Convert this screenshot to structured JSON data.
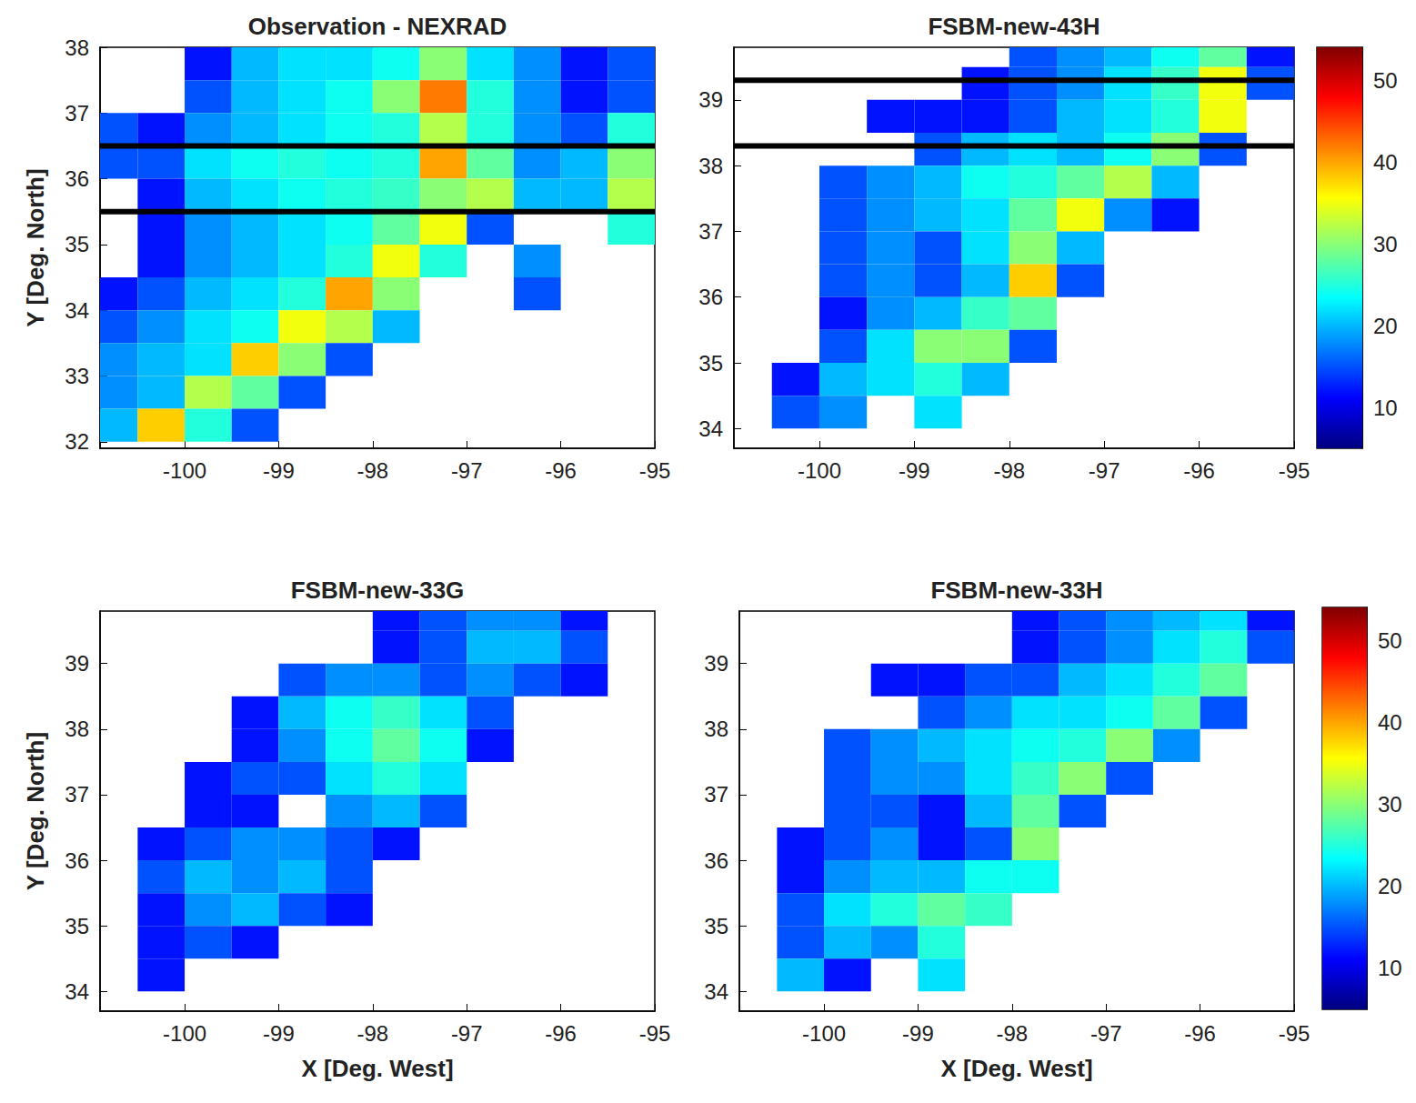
{
  "chart_data": [
    {
      "type": "heatmap",
      "title": "Observation - NEXRAD",
      "ylabel": "Y [Deg. North]",
      "xlim": [
        -100.9,
        -95
      ],
      "xticks": [
        -100,
        -99,
        -98,
        -97,
        -96,
        -95
      ],
      "ylim": [
        31.9,
        38
      ],
      "yticks": [
        32,
        33,
        34,
        35,
        36,
        37,
        38
      ],
      "hlines": [
        35.5,
        36.5
      ],
      "cells": {
        "x": [
          -100.75,
          -100.25,
          -99.75,
          -99.25,
          -98.75,
          -98.25,
          -97.75,
          -97.25,
          -96.75,
          -96.25,
          -95.75,
          -95.25
        ],
        "y": [
          37.75,
          37.25,
          36.75,
          36.25,
          35.75,
          35.25,
          34.75,
          34.25,
          33.75,
          33.25,
          32.75,
          32.25
        ],
        "values": [
          [
            null,
            null,
            12,
            20,
            22,
            22,
            24,
            30,
            22,
            18,
            12,
            15
          ],
          [
            null,
            null,
            15,
            20,
            22,
            24,
            30,
            42,
            25,
            18,
            12,
            15
          ],
          [
            15,
            12,
            18,
            20,
            22,
            24,
            25,
            32,
            25,
            18,
            15,
            25
          ],
          [
            15,
            15,
            22,
            24,
            25,
            24,
            25,
            40,
            28,
            18,
            20,
            30
          ],
          [
            null,
            12,
            20,
            22,
            24,
            25,
            26,
            30,
            32,
            20,
            20,
            32
          ],
          [
            null,
            12,
            18,
            20,
            22,
            24,
            28,
            35,
            15,
            null,
            null,
            25
          ],
          [
            null,
            12,
            18,
            20,
            22,
            25,
            35,
            25,
            null,
            18,
            null,
            null
          ],
          [
            12,
            15,
            20,
            22,
            25,
            40,
            30,
            null,
            null,
            15,
            null,
            null
          ],
          [
            15,
            18,
            22,
            24,
            35,
            32,
            20,
            null,
            null,
            null,
            null,
            null
          ],
          [
            18,
            20,
            22,
            38,
            30,
            15,
            null,
            null,
            null,
            null,
            null,
            null
          ],
          [
            18,
            20,
            32,
            28,
            15,
            null,
            null,
            null,
            null,
            null,
            null,
            null
          ],
          [
            20,
            38,
            25,
            15,
            null,
            null,
            null,
            null,
            null,
            null,
            null,
            null
          ]
        ]
      }
    },
    {
      "type": "heatmap",
      "title": "FSBM-new-43H",
      "xlim": [
        -100.9,
        -95
      ],
      "xticks": [
        -100,
        -99,
        -98,
        -97,
        -96,
        -95
      ],
      "ylim": [
        33.7,
        39.8
      ],
      "yticks": [
        34,
        35,
        36,
        37,
        38,
        39
      ],
      "hlines": [
        38.3,
        39.3
      ],
      "colorbar": {
        "range": [
          5,
          54
        ],
        "ticks": [
          10,
          20,
          30,
          40,
          50
        ]
      },
      "cells": {
        "x": [
          -100.75,
          -100.25,
          -99.75,
          -99.25,
          -98.75,
          -98.25,
          -97.75,
          -97.25,
          -96.75,
          -96.25,
          -95.75,
          -95.25
        ],
        "y": [
          39.75,
          39.25,
          38.75,
          38.25,
          37.75,
          37.25,
          36.75,
          36.25,
          35.75,
          35.25,
          34.75,
          34.25
        ],
        "values": [
          [
            null,
            null,
            null,
            null,
            null,
            null,
            15,
            18,
            20,
            24,
            28,
            12
          ],
          [
            null,
            null,
            null,
            null,
            null,
            12,
            15,
            18,
            22,
            26,
            35,
            15
          ],
          [
            null,
            null,
            null,
            12,
            12,
            12,
            15,
            20,
            22,
            25,
            35,
            null
          ],
          [
            null,
            null,
            null,
            null,
            15,
            20,
            22,
            20,
            24,
            30,
            15,
            null
          ],
          [
            null,
            null,
            15,
            18,
            20,
            24,
            25,
            28,
            32,
            20,
            null,
            null
          ],
          [
            null,
            null,
            15,
            18,
            20,
            22,
            28,
            35,
            18,
            12,
            null,
            null
          ],
          [
            null,
            null,
            15,
            18,
            15,
            22,
            30,
            20,
            null,
            null,
            null,
            null
          ],
          [
            null,
            null,
            15,
            18,
            15,
            20,
            38,
            15,
            null,
            null,
            null,
            null
          ],
          [
            null,
            null,
            12,
            18,
            20,
            26,
            28,
            null,
            null,
            null,
            null,
            null
          ],
          [
            null,
            null,
            15,
            22,
            30,
            30,
            15,
            null,
            null,
            null,
            null,
            null
          ],
          [
            null,
            12,
            20,
            22,
            25,
            20,
            null,
            null,
            null,
            null,
            null,
            null
          ],
          [
            null,
            15,
            18,
            null,
            22,
            null,
            null,
            null,
            null,
            null,
            null,
            null
          ]
        ]
      }
    },
    {
      "type": "heatmap",
      "title": "FSBM-new-33G",
      "xlabel": "X [Deg. West]",
      "ylabel": "Y [Deg. North]",
      "xlim": [
        -100.9,
        -95
      ],
      "xticks": [
        -100,
        -99,
        -98,
        -97,
        -96,
        -95
      ],
      "ylim": [
        33.7,
        39.8
      ],
      "yticks": [
        34,
        35,
        36,
        37,
        38,
        39
      ],
      "cells": {
        "x": [
          -100.75,
          -100.25,
          -99.75,
          -99.25,
          -98.75,
          -98.25,
          -97.75,
          -97.25,
          -96.75,
          -96.25,
          -95.75,
          -95.25
        ],
        "y": [
          39.75,
          39.25,
          38.75,
          38.25,
          37.75,
          37.25,
          36.75,
          36.25,
          35.75,
          35.25,
          34.75,
          34.25
        ],
        "values": [
          [
            null,
            null,
            null,
            null,
            null,
            null,
            12,
            15,
            18,
            18,
            12,
            null
          ],
          [
            null,
            null,
            null,
            null,
            null,
            null,
            12,
            15,
            20,
            20,
            15,
            null
          ],
          [
            null,
            null,
            null,
            null,
            15,
            18,
            18,
            15,
            18,
            15,
            12,
            null
          ],
          [
            null,
            null,
            null,
            12,
            20,
            24,
            26,
            22,
            15,
            null,
            null,
            null
          ],
          [
            null,
            null,
            null,
            12,
            18,
            24,
            28,
            24,
            12,
            null,
            null,
            null
          ],
          [
            null,
            null,
            12,
            15,
            15,
            22,
            25,
            22,
            null,
            null,
            null,
            null
          ],
          [
            null,
            null,
            12,
            12,
            null,
            18,
            20,
            15,
            null,
            null,
            null,
            null
          ],
          [
            null,
            12,
            15,
            18,
            18,
            15,
            12,
            null,
            null,
            null,
            null,
            null
          ],
          [
            null,
            15,
            20,
            18,
            20,
            15,
            null,
            null,
            null,
            null,
            null,
            null
          ],
          [
            null,
            12,
            18,
            20,
            15,
            12,
            null,
            null,
            null,
            null,
            null,
            null
          ],
          [
            null,
            12,
            15,
            12,
            null,
            null,
            null,
            null,
            null,
            null,
            null,
            null
          ],
          [
            null,
            12,
            null,
            null,
            null,
            null,
            null,
            null,
            null,
            null,
            null,
            null
          ]
        ]
      }
    },
    {
      "type": "heatmap",
      "title": "FSBM-new-33H",
      "xlabel": "X [Deg. West]",
      "xlim": [
        -100.9,
        -95
      ],
      "xticks": [
        -100,
        -99,
        -98,
        -97,
        -96,
        -95
      ],
      "ylim": [
        33.7,
        39.8
      ],
      "yticks": [
        34,
        35,
        36,
        37,
        38,
        39
      ],
      "colorbar": {
        "range": [
          5,
          54
        ],
        "ticks": [
          10,
          20,
          30,
          40,
          50
        ]
      },
      "cells": {
        "x": [
          -100.75,
          -100.25,
          -99.75,
          -99.25,
          -98.75,
          -98.25,
          -97.75,
          -97.25,
          -96.75,
          -96.25,
          -95.75,
          -95.25
        ],
        "y": [
          39.75,
          39.25,
          38.75,
          38.25,
          37.75,
          37.25,
          36.75,
          36.25,
          35.75,
          35.25,
          34.75,
          34.25
        ],
        "values": [
          [
            null,
            null,
            null,
            null,
            null,
            null,
            12,
            15,
            18,
            20,
            22,
            12
          ],
          [
            null,
            null,
            null,
            null,
            null,
            null,
            12,
            15,
            18,
            22,
            25,
            15
          ],
          [
            null,
            null,
            null,
            12,
            12,
            15,
            15,
            20,
            22,
            25,
            28,
            null
          ],
          [
            null,
            null,
            null,
            null,
            15,
            18,
            22,
            22,
            24,
            28,
            15,
            null
          ],
          [
            null,
            null,
            15,
            18,
            20,
            22,
            24,
            25,
            30,
            18,
            null,
            null
          ],
          [
            null,
            null,
            15,
            18,
            18,
            22,
            26,
            30,
            15,
            null,
            null,
            null
          ],
          [
            null,
            null,
            15,
            15,
            12,
            20,
            28,
            15,
            null,
            null,
            null,
            null
          ],
          [
            null,
            12,
            15,
            18,
            12,
            15,
            30,
            null,
            null,
            null,
            null,
            null
          ],
          [
            null,
            12,
            18,
            20,
            20,
            24,
            24,
            null,
            null,
            null,
            null,
            null
          ],
          [
            null,
            15,
            22,
            25,
            28,
            26,
            null,
            null,
            null,
            null,
            null,
            null
          ],
          [
            null,
            15,
            20,
            18,
            25,
            null,
            null,
            null,
            null,
            null,
            null,
            null
          ],
          [
            null,
            20,
            12,
            null,
            22,
            null,
            null,
            null,
            null,
            null,
            null,
            null
          ]
        ]
      }
    }
  ]
}
